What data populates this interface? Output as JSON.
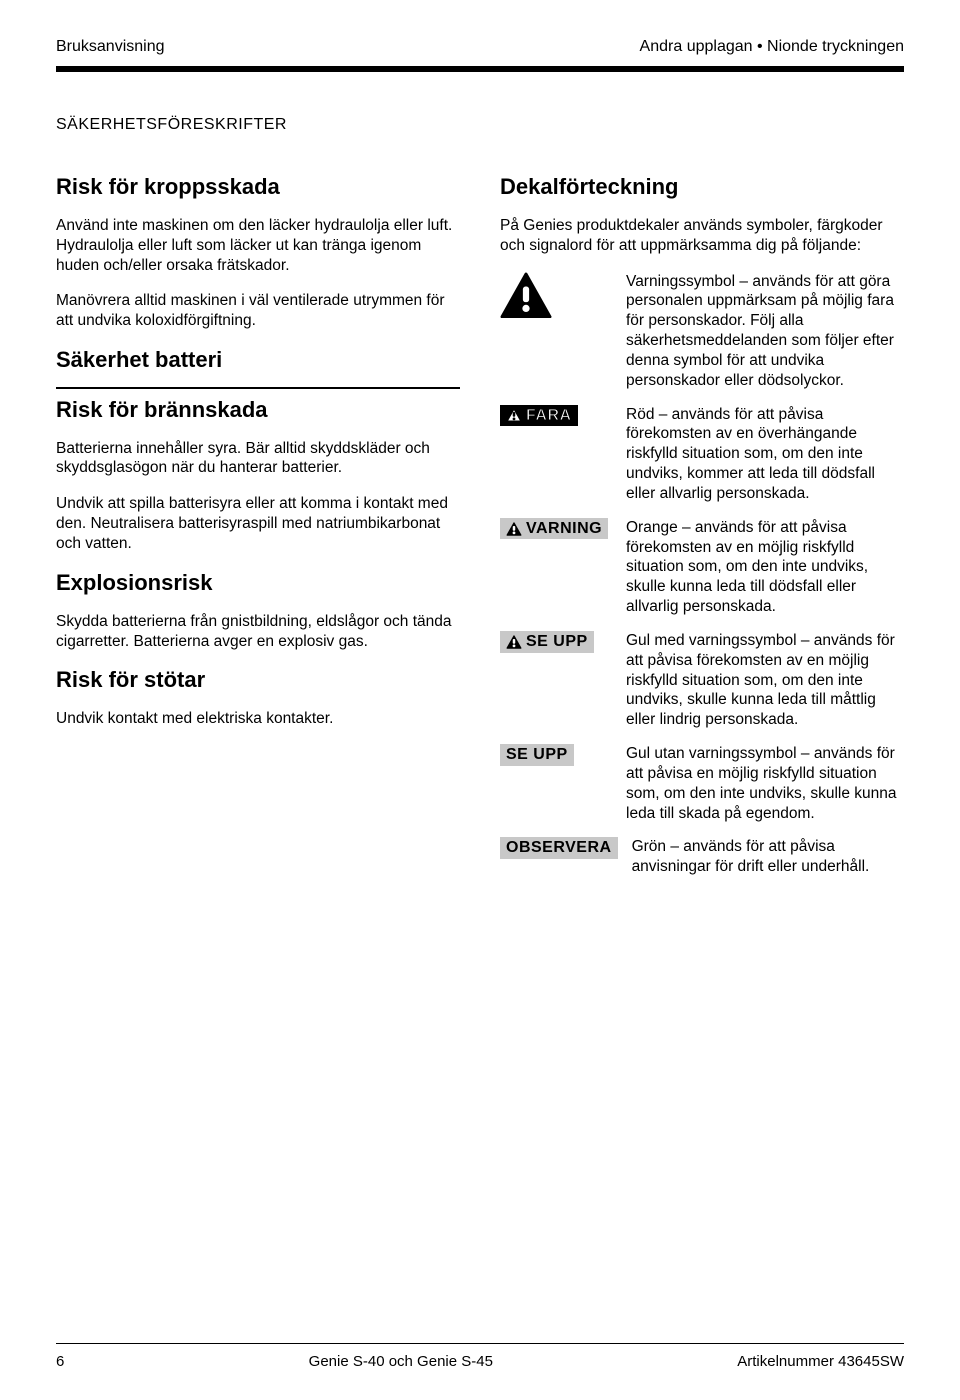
{
  "header": {
    "left": "Bruksanvisning",
    "right": "Andra upplagan • Nionde tryckningen"
  },
  "section_title": "SÄKERHETSFÖRESKRIFTER",
  "left_column": {
    "h_kroppsskada": "Risk för kroppsskada",
    "p1": "Använd inte maskinen om den läcker hydraulolja eller luft. Hydraulolja eller luft som läcker ut kan tränga igenom huden och/eller orsaka frätskador.",
    "p2": "Manövrera alltid maskinen i väl ventilerade utrymmen för att undvika koloxidförgiftning.",
    "h_batteri": "Säkerhet batteri",
    "h_brann": "Risk för brännskada",
    "p3": "Batterierna innehåller syra. Bär alltid skyddskläder och skyddsglasögon när du hanterar batterier.",
    "p4": "Undvik att spilla batterisyra eller att komma i kontakt med den. Neutralisera batterisyraspill med natriumbikarbonat och vatten.",
    "h_expl": "Explosionsrisk",
    "p5": "Skydda batterierna från gnistbildning, eldslågor och tända cigarretter. Batterierna avger en explosiv gas.",
    "h_stot": "Risk för stötar",
    "p6": "Undvik kontakt med elektriska kontakter."
  },
  "right_column": {
    "h_dekal": "Dekalförteckning",
    "intro": "På Genies produktdekaler används symboler, färgkoder och signalord för att uppmärksamma dig på följande:",
    "items": [
      {
        "label_type": "triangle_big",
        "text": "Varningssymbol – används för att göra personalen uppmärksam på möjlig fara för personskador. Följ alla säkerhetsmeddelanden som följer efter denna symbol för att undvika personskador eller dödsolyckor."
      },
      {
        "label_type": "black_badge_outline",
        "label_text": "FARA",
        "text": "Röd – används för att påvisa förekomsten av en överhängande riskfylld situation som, om den inte undviks, kommer att leda till dödsfall eller allvarlig personskada."
      },
      {
        "label_type": "grey_badge_icon",
        "label_text": "VARNING",
        "text": "Orange – används för att påvisa förekomsten av en möjlig riskfylld situation som, om den inte undviks, skulle kunna leda till dödsfall eller allvarlig personskada."
      },
      {
        "label_type": "grey_badge_icon",
        "label_text": "SE UPP",
        "text": "Gul med varningssymbol – används för att påvisa förekomsten av en möjlig riskfylld situation som, om den inte undviks, skulle kunna leda till måttlig eller lindrig personskada."
      },
      {
        "label_type": "grey_badge",
        "label_text": "SE UPP",
        "text": "Gul utan varningssymbol – används för att påvisa en möjlig riskfylld situation som, om den inte undviks, skulle kunna leda till skada på egendom."
      },
      {
        "label_type": "grey_badge",
        "label_text": "OBSERVERA",
        "text": "Grön – används för att påvisa anvisningar för drift eller underhåll."
      }
    ]
  },
  "footer": {
    "page": "6",
    "center": "Genie S-40 och Genie S-45",
    "right": "Artikelnummer 43645SW"
  },
  "colors": {
    "badge_grey": "#c8c8c8",
    "badge_black": "#000000",
    "text_black": "#000000"
  }
}
